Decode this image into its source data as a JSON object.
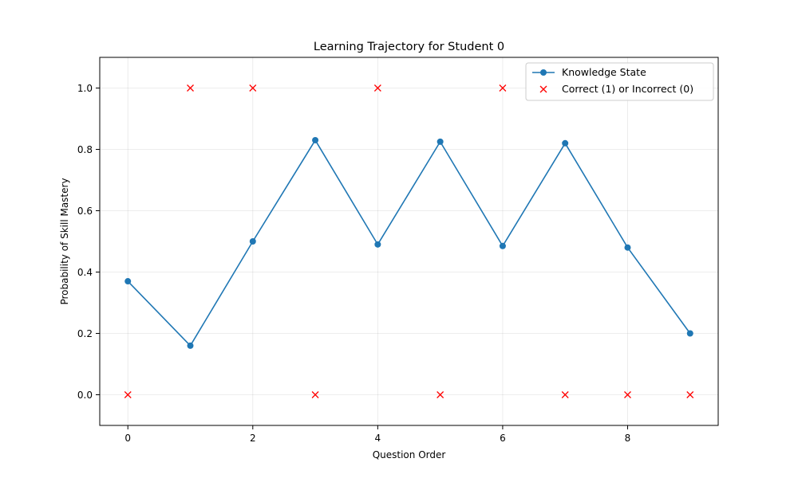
{
  "chart_data": {
    "type": "line",
    "title": "Learning Trajectory for Student 0",
    "xlabel": "Question Order",
    "ylabel": "Probability of Skill Mastery",
    "xlim": [
      -0.45,
      9.45
    ],
    "ylim": [
      -0.1,
      1.1
    ],
    "xticks": [
      0,
      2,
      4,
      6,
      8
    ],
    "yticks": [
      0.0,
      0.2,
      0.4,
      0.6,
      0.8,
      1.0
    ],
    "grid": true,
    "legend_position": "top-right",
    "x": [
      0,
      1,
      2,
      3,
      4,
      5,
      6,
      7,
      8,
      9
    ],
    "series": [
      {
        "name": "Knowledge State",
        "style": "line-with-circle-markers",
        "color": "#1f77b4",
        "values": [
          0.37,
          0.16,
          0.5,
          0.83,
          0.49,
          0.825,
          0.485,
          0.82,
          0.48,
          0.2
        ]
      },
      {
        "name": "Correct (1) or Incorrect (0)",
        "style": "x-markers",
        "color": "#ff0000",
        "values": [
          0,
          1,
          1,
          0,
          1,
          0,
          1,
          0,
          0,
          0
        ]
      }
    ]
  }
}
